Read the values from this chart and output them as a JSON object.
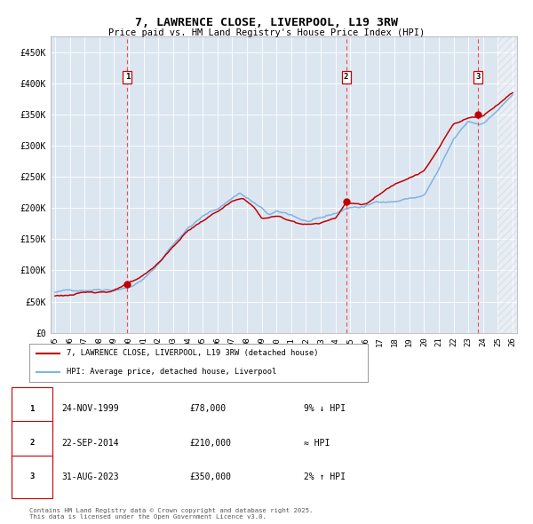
{
  "title": "7, LAWRENCE CLOSE, LIVERPOOL, L19 3RW",
  "subtitle": "Price paid vs. HM Land Registry's House Price Index (HPI)",
  "ylim": [
    0,
    475000
  ],
  "yticks": [
    0,
    50000,
    100000,
    150000,
    200000,
    250000,
    300000,
    350000,
    400000,
    450000
  ],
  "ytick_labels": [
    "£0",
    "£50K",
    "£100K",
    "£150K",
    "£200K",
    "£250K",
    "£300K",
    "£350K",
    "£400K",
    "£450K"
  ],
  "plot_bg_color": "#dce6f1",
  "hpi_line_color": "#7eb4e2",
  "price_line_color": "#c00000",
  "sale_year_decimals": [
    1999.896,
    2014.722,
    2023.664
  ],
  "sale_prices": [
    78000,
    210000,
    350000
  ],
  "sale_labels": [
    "1",
    "2",
    "3"
  ],
  "legend_label_price": "7, LAWRENCE CLOSE, LIVERPOOL, L19 3RW (detached house)",
  "legend_label_hpi": "HPI: Average price, detached house, Liverpool",
  "table_entries": [
    {
      "num": "1",
      "date": "24-NOV-1999",
      "price": "£78,000",
      "note": "9% ↓ HPI"
    },
    {
      "num": "2",
      "date": "22-SEP-2014",
      "price": "£210,000",
      "note": "≈ HPI"
    },
    {
      "num": "3",
      "date": "31-AUG-2023",
      "price": "£350,000",
      "note": "2% ↑ HPI"
    }
  ],
  "footnote": "Contains HM Land Registry data © Crown copyright and database right 2025.\nThis data is licensed under the Open Government Licence v3.0.",
  "grid_color": "#ffffff",
  "vline_color": "#ff4444"
}
